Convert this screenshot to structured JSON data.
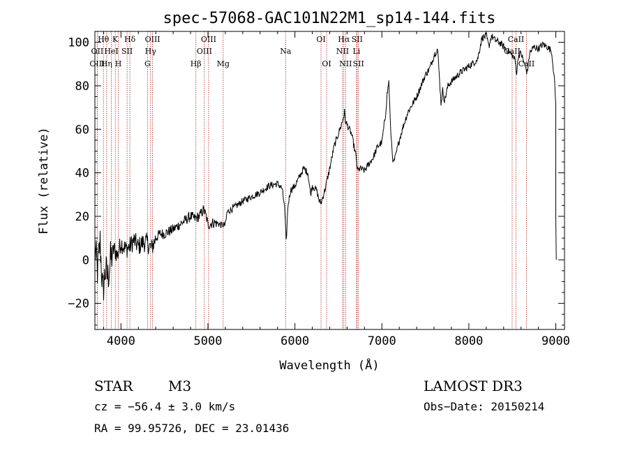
{
  "chart_data": {
    "type": "line",
    "title": "spec-57068-GAC101N22M1_sp14-144.fits",
    "xlabel": "Wavelength (Å)",
    "ylabel": "Flux (relative)",
    "xlim": [
      3700,
      9100
    ],
    "ylim": [
      -32,
      105
    ],
    "xticks": [
      {
        "value": 4000,
        "label": "4000"
      },
      {
        "value": 5000,
        "label": "5000"
      },
      {
        "value": 6000,
        "label": "6000"
      },
      {
        "value": 7000,
        "label": "7000"
      },
      {
        "value": 8000,
        "label": "8000"
      },
      {
        "value": 9000,
        "label": "9000"
      }
    ],
    "yticks": [
      {
        "value": -20,
        "label": "−20"
      },
      {
        "value": 0,
        "label": "0"
      },
      {
        "value": 20,
        "label": "20"
      },
      {
        "value": 40,
        "label": "40"
      },
      {
        "value": 60,
        "label": "60"
      },
      {
        "value": 80,
        "label": "80"
      },
      {
        "value": 100,
        "label": "100"
      }
    ],
    "spectrum_anchors": [
      [
        3700,
        5
      ],
      [
        3730,
        -5
      ],
      [
        3760,
        8
      ],
      [
        3790,
        -15
      ],
      [
        3820,
        -5
      ],
      [
        3850,
        -8
      ],
      [
        3880,
        0
      ],
      [
        3920,
        5
      ],
      [
        3960,
        2
      ],
      [
        4000,
        8
      ],
      [
        4050,
        5
      ],
      [
        4100,
        6
      ],
      [
        4150,
        9
      ],
      [
        4200,
        6
      ],
      [
        4250,
        8
      ],
      [
        4300,
        8
      ],
      [
        4350,
        5
      ],
      [
        4400,
        10
      ],
      [
        4450,
        12
      ],
      [
        4500,
        12
      ],
      [
        4600,
        14
      ],
      [
        4700,
        17
      ],
      [
        4800,
        20
      ],
      [
        4850,
        19
      ],
      [
        4900,
        20
      ],
      [
        4950,
        23
      ],
      [
        4980,
        20
      ],
      [
        5000,
        16
      ],
      [
        5050,
        17
      ],
      [
        5100,
        17
      ],
      [
        5150,
        16
      ],
      [
        5200,
        16
      ],
      [
        5220,
        22
      ],
      [
        5300,
        24
      ],
      [
        5400,
        27
      ],
      [
        5500,
        29
      ],
      [
        5600,
        31
      ],
      [
        5700,
        34
      ],
      [
        5800,
        35
      ],
      [
        5850,
        33
      ],
      [
        5880,
        25
      ],
      [
        5900,
        8
      ],
      [
        5920,
        25
      ],
      [
        5950,
        32
      ],
      [
        6000,
        34
      ],
      [
        6050,
        38
      ],
      [
        6100,
        42
      ],
      [
        6150,
        40
      ],
      [
        6180,
        30
      ],
      [
        6200,
        34
      ],
      [
        6250,
        32
      ],
      [
        6280,
        27
      ],
      [
        6300,
        26
      ],
      [
        6350,
        33
      ],
      [
        6400,
        42
      ],
      [
        6450,
        52
      ],
      [
        6500,
        58
      ],
      [
        6550,
        64
      ],
      [
        6570,
        68
      ],
      [
        6580,
        64
      ],
      [
        6600,
        62
      ],
      [
        6650,
        58
      ],
      [
        6700,
        48
      ],
      [
        6720,
        41
      ],
      [
        6750,
        42
      ],
      [
        6800,
        41
      ],
      [
        6850,
        44
      ],
      [
        6900,
        47
      ],
      [
        6950,
        52
      ],
      [
        7000,
        54
      ],
      [
        7040,
        66
      ],
      [
        7060,
        76
      ],
      [
        7080,
        82
      ],
      [
        7100,
        60
      ],
      [
        7130,
        44
      ],
      [
        7160,
        48
      ],
      [
        7200,
        55
      ],
      [
        7250,
        62
      ],
      [
        7300,
        68
      ],
      [
        7400,
        75
      ],
      [
        7500,
        85
      ],
      [
        7550,
        88
      ],
      [
        7600,
        94
      ],
      [
        7640,
        97
      ],
      [
        7660,
        85
      ],
      [
        7680,
        72
      ],
      [
        7700,
        78
      ],
      [
        7720,
        73
      ],
      [
        7760,
        80
      ],
      [
        7800,
        82
      ],
      [
        7900,
        86
      ],
      [
        8000,
        89
      ],
      [
        8100,
        92
      ],
      [
        8150,
        102
      ],
      [
        8200,
        103
      ],
      [
        8230,
        98
      ],
      [
        8260,
        103
      ],
      [
        8300,
        101
      ],
      [
        8350,
        100
      ],
      [
        8400,
        98
      ],
      [
        8450,
        96
      ],
      [
        8500,
        94
      ],
      [
        8530,
        92
      ],
      [
        8550,
        86
      ],
      [
        8570,
        94
      ],
      [
        8600,
        95
      ],
      [
        8640,
        90
      ],
      [
        8670,
        86
      ],
      [
        8700,
        95
      ],
      [
        8750,
        98
      ],
      [
        8800,
        97
      ],
      [
        8850,
        99
      ],
      [
        8900,
        98
      ],
      [
        8950,
        96
      ],
      [
        8980,
        85
      ],
      [
        9000,
        72
      ],
      [
        9000,
        20
      ],
      [
        9005,
        0
      ]
    ],
    "spectral_lines": [
      {
        "label": "Hθ",
        "x": 3798,
        "row": 0
      },
      {
        "label": "OII",
        "x": 3727,
        "row": 1
      },
      {
        "label": "OIII",
        "x": 3727,
        "row": 2
      },
      {
        "label": "K",
        "x": 3934,
        "row": 0
      },
      {
        "label": "HeI",
        "x": 3889,
        "row": 1
      },
      {
        "label": "Hη",
        "x": 3835,
        "row": 2
      },
      {
        "label": "Hδ",
        "x": 4102,
        "row": 0
      },
      {
        "label": "SII",
        "x": 4070,
        "row": 1
      },
      {
        "label": "H",
        "x": 3969,
        "row": 2
      },
      {
        "label": "OIII",
        "x": 4363,
        "row": 0
      },
      {
        "label": "Hγ",
        "x": 4340,
        "row": 1
      },
      {
        "label": "G",
        "x": 4305,
        "row": 2
      },
      {
        "label": "OIII",
        "x": 5007,
        "row": 0
      },
      {
        "label": "OIII",
        "x": 4959,
        "row": 1
      },
      {
        "label": "Hβ",
        "x": 4861,
        "row": 2
      },
      {
        "label": "Mg",
        "x": 5175,
        "row": 2
      },
      {
        "label": "Na",
        "x": 5893,
        "row": 1
      },
      {
        "label": "OI",
        "x": 6300,
        "row": 0
      },
      {
        "label": "OI",
        "x": 6364,
        "row": 2
      },
      {
        "label": "Hα",
        "x": 6563,
        "row": 0
      },
      {
        "label": "SII",
        "x": 6716,
        "row": 0
      },
      {
        "label": "NII",
        "x": 6548,
        "row": 1
      },
      {
        "label": "Li",
        "x": 6708,
        "row": 1
      },
      {
        "label": "NII",
        "x": 6583,
        "row": 2
      },
      {
        "label": "SII",
        "x": 6731,
        "row": 2
      },
      {
        "label": "CaII",
        "x": 8542,
        "row": 0
      },
      {
        "label": "CaII",
        "x": 8498,
        "row": 1
      },
      {
        "label": "CaII",
        "x": 8662,
        "row": 2
      }
    ]
  },
  "info": {
    "object_class": "STAR",
    "subclass": "M3",
    "survey": "LAMOST DR3",
    "velocity": "cz = −56.4 ± 3.0 km/s",
    "obs_date": "Obs−Date: 20150214",
    "coords": "RA =  99.95726, DEC =  23.01436"
  },
  "colors": {
    "spectrum": "#000000",
    "line_markers": "#b22222",
    "axes": "#000000"
  }
}
